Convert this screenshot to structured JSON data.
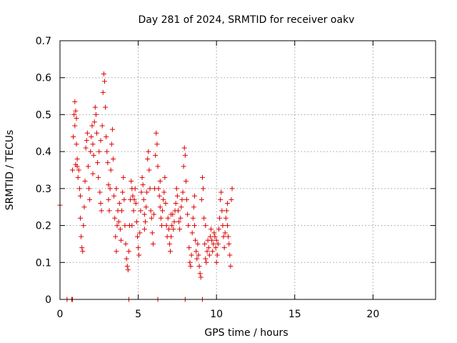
{
  "chart_data": {
    "type": "scatter",
    "title": "Day 281 of 2024, SRMTID for receiver oakv",
    "xlabel": "GPS time / hours",
    "ylabel": "SRMTID / TECUs",
    "xlim": [
      0,
      24
    ],
    "ylim": [
      0,
      0.7
    ],
    "xticks": [
      0,
      5,
      10,
      15,
      20
    ],
    "xtick_labels": [
      "0",
      "5",
      "10",
      "15",
      "20"
    ],
    "yticks": [
      0,
      0.1,
      0.2,
      0.3,
      0.4,
      0.5,
      0.6,
      0.7
    ],
    "ytick_labels": [
      "0",
      "0.1",
      "0.2",
      "0.3",
      "0.4",
      "0.5",
      "0.6",
      "0.7"
    ],
    "grid": true,
    "marker": "+",
    "color": "#dd0000",
    "series": [
      {
        "name": "SRMTID",
        "points": [
          [
            0.0,
            0.255
          ],
          [
            0.45,
            0.0
          ],
          [
            0.75,
            0.0
          ],
          [
            0.8,
            0.0
          ],
          [
            0.8,
            0.35
          ],
          [
            0.85,
            0.44
          ],
          [
            0.9,
            0.5
          ],
          [
            0.95,
            0.47
          ],
          [
            1.0,
            0.365
          ],
          [
            1.05,
            0.42
          ],
          [
            1.1,
            0.36
          ],
          [
            1.15,
            0.33
          ],
          [
            0.95,
            0.535
          ],
          [
            1.0,
            0.51
          ],
          [
            1.05,
            0.49
          ],
          [
            1.1,
            0.38
          ],
          [
            1.2,
            0.35
          ],
          [
            1.25,
            0.3
          ],
          [
            1.3,
            0.28
          ],
          [
            1.35,
            0.17
          ],
          [
            1.4,
            0.14
          ],
          [
            1.45,
            0.13
          ],
          [
            1.5,
            0.2
          ],
          [
            1.55,
            0.25
          ],
          [
            1.6,
            0.32
          ],
          [
            1.65,
            0.41
          ],
          [
            1.7,
            0.43
          ],
          [
            1.75,
            0.45
          ],
          [
            1.8,
            0.36
          ],
          [
            1.85,
            0.3
          ],
          [
            1.9,
            0.27
          ],
          [
            1.95,
            0.4
          ],
          [
            2.0,
            0.44
          ],
          [
            2.05,
            0.47
          ],
          [
            2.1,
            0.42
          ],
          [
            2.15,
            0.39
          ],
          [
            2.2,
            0.48
          ],
          [
            2.25,
            0.52
          ],
          [
            2.3,
            0.5
          ],
          [
            2.35,
            0.45
          ],
          [
            2.4,
            0.37
          ],
          [
            2.45,
            0.33
          ],
          [
            2.5,
            0.4
          ],
          [
            2.55,
            0.29
          ],
          [
            2.6,
            0.26
          ],
          [
            2.65,
            0.24
          ],
          [
            2.7,
            0.47
          ],
          [
            2.75,
            0.56
          ],
          [
            2.8,
            0.61
          ],
          [
            2.85,
            0.59
          ],
          [
            2.9,
            0.52
          ],
          [
            2.95,
            0.44
          ],
          [
            3.0,
            0.4
          ],
          [
            3.05,
            0.37
          ],
          [
            3.1,
            0.31
          ],
          [
            3.15,
            0.24
          ],
          [
            3.2,
            0.3
          ],
          [
            3.25,
            0.35
          ],
          [
            3.3,
            0.42
          ],
          [
            3.35,
            0.46
          ],
          [
            3.4,
            0.38
          ],
          [
            3.45,
            0.28
          ],
          [
            3.5,
            0.22
          ],
          [
            3.55,
            0.17
          ],
          [
            3.6,
            0.13
          ],
          [
            3.65,
            0.2
          ],
          [
            3.7,
            0.24
          ],
          [
            3.75,
            0.21
          ],
          [
            3.8,
            0.26
          ],
          [
            3.85,
            0.19
          ],
          [
            3.9,
            0.16
          ],
          [
            3.95,
            0.24
          ],
          [
            4.0,
            0.29
          ],
          [
            4.05,
            0.33
          ],
          [
            4.1,
            0.27
          ],
          [
            4.15,
            0.2
          ],
          [
            4.2,
            0.15
          ],
          [
            4.25,
            0.11
          ],
          [
            4.3,
            0.09
          ],
          [
            4.35,
            0.08
          ],
          [
            4.4,
            0.13
          ],
          [
            4.45,
            0.2
          ],
          [
            4.5,
            0.27
          ],
          [
            4.55,
            0.32
          ],
          [
            4.6,
            0.3
          ],
          [
            4.65,
            0.28
          ],
          [
            4.7,
            0.24
          ],
          [
            4.75,
            0.27
          ],
          [
            4.8,
            0.3
          ],
          [
            4.85,
            0.26
          ],
          [
            4.9,
            0.21
          ],
          [
            4.95,
            0.17
          ],
          [
            5.0,
            0.14
          ],
          [
            5.05,
            0.12
          ],
          [
            5.1,
            0.18
          ],
          [
            5.15,
            0.24
          ],
          [
            5.2,
            0.29
          ],
          [
            5.25,
            0.33
          ],
          [
            5.3,
            0.31
          ],
          [
            5.35,
            0.27
          ],
          [
            5.4,
            0.23
          ],
          [
            5.45,
            0.21
          ],
          [
            5.5,
            0.25
          ],
          [
            5.55,
            0.29
          ],
          [
            5.6,
            0.38
          ],
          [
            5.65,
            0.4
          ],
          [
            5.7,
            0.35
          ],
          [
            5.75,
            0.3
          ],
          [
            5.8,
            0.24
          ],
          [
            5.85,
            0.22
          ],
          [
            5.9,
            0.18
          ],
          [
            5.95,
            0.15
          ],
          [
            6.0,
            0.23
          ],
          [
            6.05,
            0.3
          ],
          [
            6.1,
            0.39
          ],
          [
            6.15,
            0.45
          ],
          [
            6.2,
            0.42
          ],
          [
            6.25,
            0.36
          ],
          [
            6.3,
            0.3
          ],
          [
            6.35,
            0.28
          ],
          [
            6.4,
            0.25
          ],
          [
            6.45,
            0.22
          ],
          [
            6.5,
            0.2
          ],
          [
            6.55,
            0.24
          ],
          [
            6.6,
            0.27
          ],
          [
            6.65,
            0.29
          ],
          [
            6.7,
            0.33
          ],
          [
            6.75,
            0.26
          ],
          [
            6.8,
            0.2
          ],
          [
            6.85,
            0.17
          ],
          [
            6.9,
            0.22
          ],
          [
            6.95,
            0.19
          ],
          [
            7.0,
            0.15
          ],
          [
            7.05,
            0.13
          ],
          [
            7.1,
            0.17
          ],
          [
            7.15,
            0.2
          ],
          [
            7.2,
            0.23
          ],
          [
            7.25,
            0.19
          ],
          [
            7.3,
            0.21
          ],
          [
            7.35,
            0.24
          ],
          [
            7.4,
            0.26
          ],
          [
            7.45,
            0.3
          ],
          [
            7.5,
            0.28
          ],
          [
            7.55,
            0.24
          ],
          [
            7.6,
            0.21
          ],
          [
            7.65,
            0.19
          ],
          [
            7.7,
            0.22
          ],
          [
            7.75,
            0.25
          ],
          [
            7.8,
            0.27
          ],
          [
            7.85,
            0.29
          ],
          [
            7.9,
            0.36
          ],
          [
            7.95,
            0.41
          ],
          [
            8.0,
            0.39
          ],
          [
            8.05,
            0.32
          ],
          [
            8.1,
            0.27
          ],
          [
            8.15,
            0.23
          ],
          [
            8.2,
            0.2
          ],
          [
            8.25,
            0.14
          ],
          [
            8.3,
            0.1
          ],
          [
            8.35,
            0.09
          ],
          [
            8.4,
            0.12
          ],
          [
            8.45,
            0.18
          ],
          [
            8.5,
            0.22
          ],
          [
            8.55,
            0.25
          ],
          [
            8.6,
            0.2
          ],
          [
            8.65,
            0.16
          ],
          [
            8.7,
            0.13
          ],
          [
            8.75,
            0.11
          ],
          [
            8.8,
            0.15
          ],
          [
            8.85,
            0.12
          ],
          [
            8.9,
            0.09
          ],
          [
            8.95,
            0.07
          ],
          [
            9.0,
            0.06
          ],
          [
            9.05,
            0.27
          ],
          [
            9.1,
            0.33
          ],
          [
            9.15,
            0.3
          ],
          [
            9.2,
            0.22
          ],
          [
            9.25,
            0.15
          ],
          [
            9.3,
            0.11
          ],
          [
            9.35,
            0.1
          ],
          [
            9.4,
            0.13
          ],
          [
            9.45,
            0.16
          ],
          [
            9.5,
            0.14
          ],
          [
            9.55,
            0.12
          ],
          [
            9.6,
            0.17
          ],
          [
            9.65,
            0.19
          ],
          [
            9.7,
            0.16
          ],
          [
            9.75,
            0.13
          ],
          [
            9.8,
            0.15
          ],
          [
            9.85,
            0.18
          ],
          [
            9.9,
            0.17
          ],
          [
            9.95,
            0.14
          ],
          [
            10.0,
            0.16
          ],
          [
            10.05,
            0.12
          ],
          [
            10.1,
            0.15
          ],
          [
            10.15,
            0.19
          ],
          [
            10.2,
            0.22
          ],
          [
            10.25,
            0.27
          ],
          [
            10.3,
            0.29
          ],
          [
            10.35,
            0.24
          ],
          [
            10.4,
            0.2
          ],
          [
            10.45,
            0.17
          ],
          [
            10.5,
            0.14
          ],
          [
            10.55,
            0.18
          ],
          [
            10.6,
            0.22
          ],
          [
            10.65,
            0.24
          ],
          [
            10.7,
            0.2
          ],
          [
            10.75,
            0.17
          ],
          [
            10.8,
            0.15
          ],
          [
            10.85,
            0.12
          ],
          [
            10.9,
            0.09
          ],
          [
            10.95,
            0.27
          ],
          [
            11.0,
            0.3
          ],
          [
            1.3,
            0.22
          ],
          [
            2.1,
            0.34
          ],
          [
            2.6,
            0.43
          ],
          [
            3.1,
            0.27
          ],
          [
            3.6,
            0.3
          ],
          [
            4.6,
            0.2
          ],
          [
            5.4,
            0.19
          ],
          [
            6.4,
            0.32
          ],
          [
            7.1,
            0.23
          ],
          [
            8.6,
            0.28
          ],
          [
            9.3,
            0.2
          ],
          [
            10.0,
            0.1
          ],
          [
            10.7,
            0.26
          ],
          [
            4.4,
            0.0
          ],
          [
            6.25,
            0.0
          ],
          [
            8.0,
            0.0
          ],
          [
            9.1,
            0.0
          ]
        ]
      }
    ]
  }
}
